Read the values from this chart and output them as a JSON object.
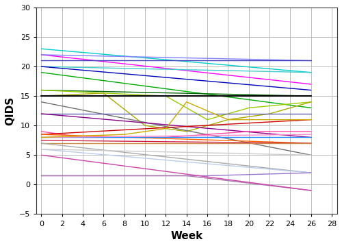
{
  "xlabel": "Week",
  "ylabel": "QIDS",
  "xlim": [
    -0.5,
    28.5
  ],
  "ylim": [
    -5,
    30
  ],
  "xticks": [
    0,
    2,
    4,
    6,
    8,
    10,
    12,
    14,
    16,
    18,
    20,
    22,
    24,
    26,
    28
  ],
  "yticks": [
    -5,
    0,
    5,
    10,
    15,
    20,
    25,
    30
  ],
  "figsize": [
    5.0,
    3.59
  ],
  "dpi": 100,
  "lines": [
    {
      "x": [
        0,
        26
      ],
      "y": [
        23,
        19
      ],
      "color": "#00CCCC",
      "lw": 1.0
    },
    {
      "x": [
        0,
        26
      ],
      "y": [
        22,
        17
      ],
      "color": "#FF00FF",
      "lw": 1.0
    },
    {
      "x": [
        0,
        26
      ],
      "y": [
        22,
        21
      ],
      "color": "#8080FF",
      "lw": 1.0
    },
    {
      "x": [
        0,
        26
      ],
      "y": [
        21,
        21
      ],
      "color": "#4040BB",
      "lw": 1.0
    },
    {
      "x": [
        0,
        26
      ],
      "y": [
        20,
        19
      ],
      "color": "#40CCCC",
      "lw": 1.0
    },
    {
      "x": [
        0,
        26
      ],
      "y": [
        20,
        16
      ],
      "color": "#0000BB",
      "lw": 1.0
    },
    {
      "x": [
        0,
        26
      ],
      "y": [
        19,
        13
      ],
      "color": "#00AA00",
      "lw": 1.0
    },
    {
      "x": [
        0,
        26
      ],
      "y": [
        16,
        15
      ],
      "color": "#006600",
      "lw": 1.0
    },
    {
      "x": [
        0,
        6,
        12,
        16,
        20,
        26
      ],
      "y": [
        16,
        15.5,
        15,
        11,
        13,
        14
      ],
      "color": "#99CC00",
      "lw": 1.0
    },
    {
      "x": [
        0,
        6,
        10,
        14,
        18,
        22,
        26
      ],
      "y": [
        15,
        15.5,
        10,
        9,
        11,
        12,
        14
      ],
      "color": "#AAAA00",
      "lw": 1.0
    },
    {
      "x": [
        0,
        26
      ],
      "y": [
        15,
        15
      ],
      "color": "#000000",
      "lw": 1.5
    },
    {
      "x": [
        0,
        26
      ],
      "y": [
        14,
        5
      ],
      "color": "#707070",
      "lw": 1.0
    },
    {
      "x": [
        0,
        26
      ],
      "y": [
        12,
        12
      ],
      "color": "#6060AA",
      "lw": 1.0
    },
    {
      "x": [
        0,
        26
      ],
      "y": [
        12,
        8
      ],
      "color": "#880088",
      "lw": 1.0
    },
    {
      "x": [
        0,
        4,
        8,
        12,
        16,
        20,
        26
      ],
      "y": [
        9,
        8,
        8,
        8,
        8.5,
        9,
        9
      ],
      "color": "#FF44AA",
      "lw": 1.0
    },
    {
      "x": [
        0,
        26
      ],
      "y": [
        8.5,
        11
      ],
      "color": "#CC0000",
      "lw": 1.0
    },
    {
      "x": [
        0,
        26
      ],
      "y": [
        8.5,
        7
      ],
      "color": "#FF6600",
      "lw": 1.0
    },
    {
      "x": [
        0,
        26
      ],
      "y": [
        8,
        8
      ],
      "color": "#2288FF",
      "lw": 1.0
    },
    {
      "x": [
        0,
        26
      ],
      "y": [
        8,
        8.5
      ],
      "color": "#FF88CC",
      "lw": 1.0
    },
    {
      "x": [
        0,
        26
      ],
      "y": [
        7.5,
        7
      ],
      "color": "#CC2244",
      "lw": 1.0
    },
    {
      "x": [
        0,
        26
      ],
      "y": [
        7,
        7
      ],
      "color": "#CC8844",
      "lw": 1.0
    },
    {
      "x": [
        0,
        26
      ],
      "y": [
        7,
        2
      ],
      "color": "#AAAAAA",
      "lw": 1.0
    },
    {
      "x": [
        0,
        26
      ],
      "y": [
        6,
        2
      ],
      "color": "#BBCCEE",
      "lw": 1.0
    },
    {
      "x": [
        0,
        26
      ],
      "y": [
        6,
        5
      ],
      "color": "#CCCCCC",
      "lw": 1.0
    },
    {
      "x": [
        0,
        14,
        16,
        26
      ],
      "y": [
        1.5,
        1.5,
        1.5,
        2
      ],
      "color": "#9977CC",
      "lw": 1.0
    },
    {
      "x": [
        0,
        14,
        26
      ],
      "y": [
        1.5,
        1.5,
        -1
      ],
      "color": "#AA77AA",
      "lw": 1.0
    },
    {
      "x": [
        0,
        8,
        12,
        14,
        18,
        26
      ],
      "y": [
        8,
        8.5,
        9.5,
        14,
        11,
        11
      ],
      "color": "#CCAA00",
      "lw": 1.0
    },
    {
      "x": [
        0,
        26
      ],
      "y": [
        5,
        -1
      ],
      "color": "#CC44AA",
      "lw": 1.0
    }
  ],
  "grid_color": "#BBBBBB",
  "bg_color": "#FFFFFF",
  "spine_color": "#333333"
}
